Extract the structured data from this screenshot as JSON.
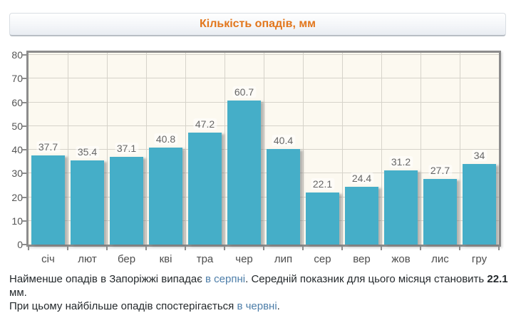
{
  "header": {
    "title": "Кількість опадів, мм",
    "title_color": "#e2761c"
  },
  "chart_data": {
    "type": "bar",
    "title": "Кількість опадів, мм",
    "categories": [
      "січ",
      "лют",
      "бер",
      "кві",
      "тра",
      "чер",
      "лип",
      "сер",
      "вер",
      "жов",
      "лис",
      "гру"
    ],
    "values": [
      37.7,
      35.4,
      37.1,
      40.8,
      47.2,
      60.7,
      40.4,
      22.1,
      24.4,
      31.2,
      27.7,
      34
    ],
    "xlabel": "",
    "ylabel": "",
    "ylim": [
      0,
      80
    ],
    "ytick_step": 10,
    "grid": true,
    "legend": "none",
    "bar_color": "#45aec8",
    "plot_background": "#fcf9f0",
    "grid_color": "#d6d3ca",
    "frame_color": "#8c8c8c",
    "value_label_color": "#666666",
    "axis_label_color": "#555555"
  },
  "footer": {
    "link_color": "#4d7ea9",
    "lines": [
      {
        "segments": [
          {
            "text": "Найменше опадів в Запоріжжі випадає ",
            "type": "text"
          },
          {
            "text": "в серпні",
            "type": "link"
          },
          {
            "text": ". Середній показник для цього місяця становить ",
            "type": "text"
          },
          {
            "text": "22.1",
            "type": "bold"
          },
          {
            "text": " мм.",
            "type": "text"
          }
        ]
      },
      {
        "segments": [
          {
            "text": "При цьому найбільше опадів спостерігається ",
            "type": "text"
          },
          {
            "text": "в червні",
            "type": "link"
          },
          {
            "text": ".",
            "type": "text"
          }
        ]
      }
    ]
  }
}
